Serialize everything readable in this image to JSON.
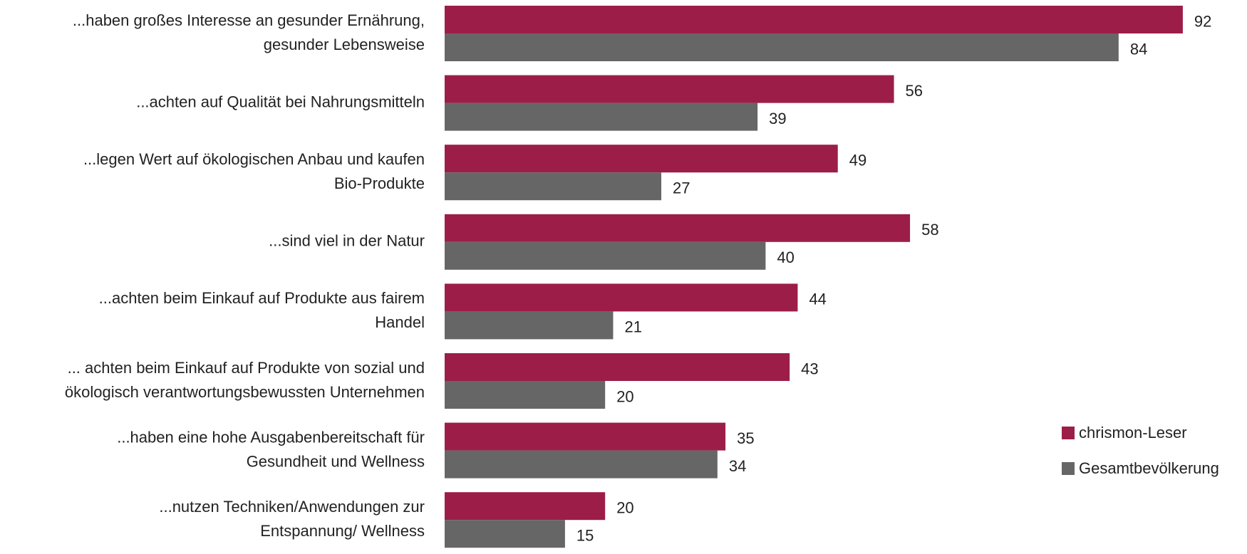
{
  "chart_data": {
    "type": "bar",
    "orientation": "horizontal",
    "categories": [
      [
        "...haben großes Interesse an gesunder Ernährung,",
        "gesunder Lebensweise"
      ],
      [
        "...achten auf Qualität bei Nahrungsmitteln"
      ],
      [
        "...legen Wert auf ökologischen Anbau und kaufen",
        "Bio-Produkte"
      ],
      [
        "...sind viel in der Natur"
      ],
      [
        "...achten beim Einkauf auf Produkte aus fairem",
        "Handel"
      ],
      [
        "... achten beim Einkauf auf Produkte von sozial und",
        "ökologisch verantwortungsbewussten Unternehmen"
      ],
      [
        "...haben eine hohe Ausgabenbereitschaft für",
        "Gesundheit und Wellness"
      ],
      [
        "...nutzen Techniken/Anwendungen zur",
        "Entspannung/ Wellness"
      ]
    ],
    "series": [
      {
        "name": "chrismon-Leser",
        "color": "#9c1e48",
        "values": [
          92,
          56,
          49,
          58,
          44,
          43,
          35,
          20
        ]
      },
      {
        "name": "Gesamtbevölkerung",
        "color": "#666666",
        "values": [
          84,
          39,
          27,
          40,
          21,
          20,
          34,
          15
        ]
      }
    ],
    "xlim": [
      0,
      100
    ],
    "legend": "right"
  }
}
